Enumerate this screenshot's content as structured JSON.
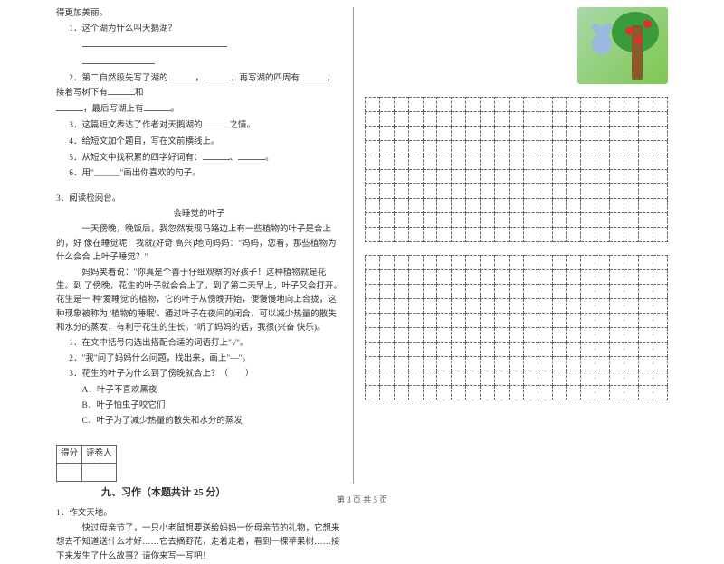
{
  "left": {
    "top": "得更加美丽。",
    "q1": "1．这个湖为什么叫天鹅湖？",
    "q2a": "2．第二自然段先写了湖的",
    "q2b": "，再写湖的四周有",
    "q2c": "，接着写树下有",
    "q2d": "和",
    "q2e": "，最后写湖上有",
    "q2f": "。",
    "q3a": "3．这篇短文表达了作者对天鹅湖的",
    "q3b": "之情。",
    "q4": "4．给短文加个题目，写在文前横线上。",
    "q5a": "5．从短文中找积累的四字好词有：",
    "q5b": "、",
    "q5c": "。",
    "q6": "6．用\"______\"画出你喜欢的句子。",
    "r_intro": "3．阅读检阅台。",
    "r_title": "会睡觉的叶子",
    "p1": "一天傍晚，晚饭后，我忽然发现马路边上有一些植物的叶子是合上的，好 像在睡觉呢！我就(好奇  高兴)地问妈妈：\"妈妈，您看，那些植物为什么会合 上叶子睡觉？\"",
    "p2": "妈妈笑着说：\"你真是个善于仔细观察的好孩子！这种植物就是花生。到 了傍晚，花生的叶子就会合上了，到了第二天早上，叶子又会打开。花生是一 种'爱睡觉'的植物，它的叶子从傍晚开始，便慢慢地向上合拢，这种现象被称为 '植物的睡眠'。通过叶子在夜间的闭合，可以减少热量的散失和水分的蒸发，有利于花生的生长。\"听了妈妈的话，我很(兴奋  快乐)。",
    "rq1": "1．在文中括号内选出搭配合适的词语打上\"√\"。",
    "rq2": "2．\"我\"问了妈妈什么问题，找出来，画上\"—\"。",
    "rq3": "3．花生的叶子为什么到了傍晚就合上？（　　）",
    "rq3a": "A．叶子不喜欢黑夜",
    "rq3b": "B．叶子怕虫子咬它们",
    "rq3c": "C．叶子为了减少热量的散失和水分的蒸发",
    "score_h1": "得分",
    "score_h2": "评卷人",
    "section9": "九、习作（本题共计 25 分）",
    "w1": "1．作文天地。",
    "w_body": "快过母亲节了，一只小老鼠想要送给妈妈一份母亲节的礼物，它想来想去不知道送什么才好……它去摘野花，走着走着，看到一棵苹果树……接下来发生了什么故事？请你来写一写吧！"
  },
  "grid": {
    "cols": 21,
    "rows_per_block": 10,
    "blocks": 2,
    "border_color": "#666666"
  },
  "footer": "第 3 页 共 5 页",
  "colors": {
    "text": "#333333",
    "bg": "#ffffff",
    "divider": "#999999",
    "img_bg_from": "#a8d8a8",
    "img_bg_to": "#7ec850",
    "trunk": "#8b5a2b",
    "crown": "#3a9b3a",
    "apple": "#e03030",
    "mouse": "#9ab8e0"
  }
}
